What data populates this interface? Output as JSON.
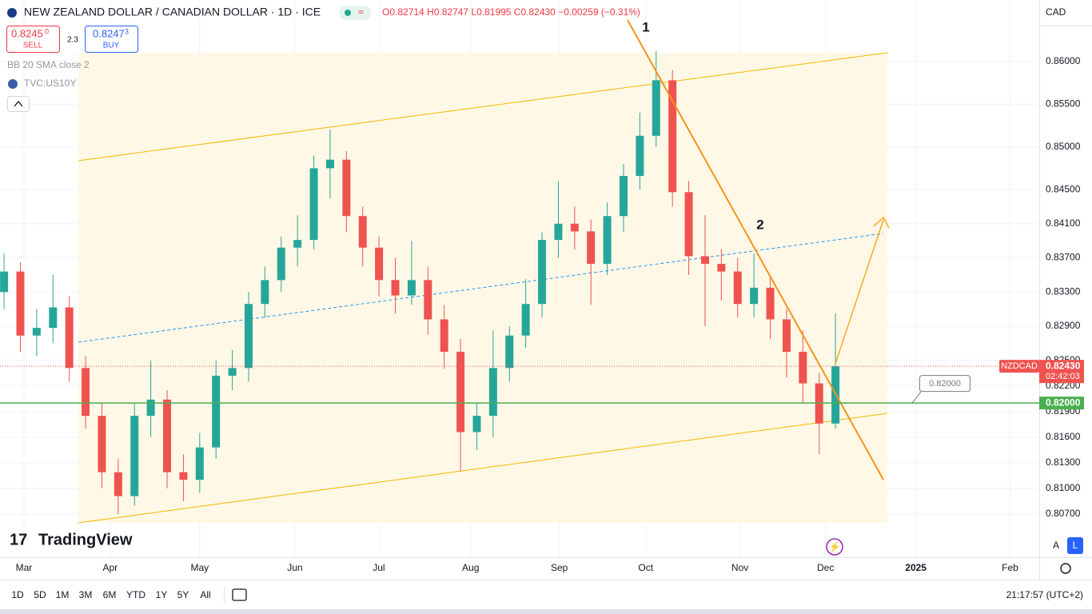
{
  "chart_data": {
    "type": "candlestick",
    "title": "NEW ZEALAND DOLLAR / CANADIAN DOLLAR · 1D · ICE",
    "ohlc_header": "O0.82714 H0.82747 L0.81995 C0.82430 −0.00259 (−0.31%)",
    "currency": "CAD",
    "sell": {
      "price": "0.8245",
      "price_tail": "0",
      "label": "SELL"
    },
    "spread": "2.3",
    "buy": {
      "price": "0.8247",
      "price_tail": "3",
      "label": "BUY"
    },
    "indicators": [
      "BB 20 SMA close 2",
      "TVC:US10Y"
    ],
    "annotations": [
      "1",
      "2"
    ],
    "up_color": "#26a69a",
    "down_color": "#ef5350",
    "grid": true,
    "xlim": [
      -0.25,
      63.5
    ],
    "xticks": [
      {
        "value": 1.22,
        "label": "Mar"
      },
      {
        "value": 6.51,
        "label": "Apr"
      },
      {
        "value": 12.0,
        "label": "May"
      },
      {
        "value": 17.84,
        "label": "Jun"
      },
      {
        "value": 22.99,
        "label": "Jul"
      },
      {
        "value": 28.62,
        "label": "Aug"
      },
      {
        "value": 34.06,
        "label": "Sep"
      },
      {
        "value": 39.36,
        "label": "Oct"
      },
      {
        "value": 45.14,
        "label": "Nov"
      },
      {
        "value": 50.39,
        "label": "Dec"
      },
      {
        "value": 55.93,
        "label": "2025"
      },
      {
        "value": 61.71,
        "label": "Feb"
      }
    ],
    "ylim": [
      0.80194,
      0.8672
    ],
    "yticks": [
      {
        "value": 0.86,
        "label": "0.86000"
      },
      {
        "value": 0.855,
        "label": "0.85500"
      },
      {
        "value": 0.85,
        "label": "0.85000"
      },
      {
        "value": 0.845,
        "label": "0.84500"
      },
      {
        "value": 0.841,
        "label": "0.84100"
      },
      {
        "value": 0.837,
        "label": "0.83700"
      },
      {
        "value": 0.833,
        "label": "0.83300"
      },
      {
        "value": 0.829,
        "label": "0.82900"
      },
      {
        "value": 0.825,
        "label": "0.82500"
      },
      {
        "value": 0.822,
        "label": "0.82200"
      },
      {
        "value": 0.819,
        "label": "0.81900"
      },
      {
        "value": 0.816,
        "label": "0.81600"
      },
      {
        "value": 0.813,
        "label": "0.81300"
      },
      {
        "value": 0.81,
        "label": "0.81000"
      },
      {
        "value": 0.807,
        "label": "0.80700"
      }
    ],
    "ohlc": [
      [
        0.833,
        0.8375,
        0.831,
        0.8354
      ],
      [
        0.8354,
        0.8365,
        0.826,
        0.8279
      ],
      [
        0.8279,
        0.831,
        0.8255,
        0.8288
      ],
      [
        0.8288,
        0.835,
        0.827,
        0.8312
      ],
      [
        0.8312,
        0.8325,
        0.8225,
        0.8241
      ],
      [
        0.8241,
        0.8255,
        0.817,
        0.8185
      ],
      [
        0.8185,
        0.82,
        0.81,
        0.8119
      ],
      [
        0.8119,
        0.8135,
        0.807,
        0.8091
      ],
      [
        0.8091,
        0.82,
        0.808,
        0.8185
      ],
      [
        0.8185,
        0.825,
        0.816,
        0.8204
      ],
      [
        0.8204,
        0.8215,
        0.81,
        0.8119
      ],
      [
        0.8119,
        0.814,
        0.8085,
        0.811
      ],
      [
        0.811,
        0.8165,
        0.8095,
        0.8148
      ],
      [
        0.8148,
        0.825,
        0.8135,
        0.8232
      ],
      [
        0.8232,
        0.8262,
        0.8215,
        0.8241
      ],
      [
        0.8241,
        0.833,
        0.8225,
        0.8316
      ],
      [
        0.8316,
        0.836,
        0.83,
        0.8344
      ],
      [
        0.8344,
        0.8395,
        0.833,
        0.8382
      ],
      [
        0.8382,
        0.842,
        0.836,
        0.8391
      ],
      [
        0.8391,
        0.849,
        0.838,
        0.8475
      ],
      [
        0.8475,
        0.852,
        0.844,
        0.8485
      ],
      [
        0.8485,
        0.8495,
        0.84,
        0.8419
      ],
      [
        0.8419,
        0.843,
        0.836,
        0.8382
      ],
      [
        0.8382,
        0.8395,
        0.8325,
        0.8344
      ],
      [
        0.8344,
        0.837,
        0.8305,
        0.8326
      ],
      [
        0.8326,
        0.839,
        0.8315,
        0.8344
      ],
      [
        0.8344,
        0.836,
        0.828,
        0.8298
      ],
      [
        0.8298,
        0.8315,
        0.824,
        0.826
      ],
      [
        0.826,
        0.8275,
        0.812,
        0.8166
      ],
      [
        0.8166,
        0.82,
        0.8145,
        0.8185
      ],
      [
        0.8185,
        0.8285,
        0.816,
        0.8241
      ],
      [
        0.8241,
        0.829,
        0.8225,
        0.8279
      ],
      [
        0.8279,
        0.8345,
        0.8265,
        0.8316
      ],
      [
        0.8316,
        0.84,
        0.83,
        0.8391
      ],
      [
        0.8391,
        0.846,
        0.837,
        0.841
      ],
      [
        0.841,
        0.843,
        0.838,
        0.8401
      ],
      [
        0.8401,
        0.8415,
        0.8315,
        0.8363
      ],
      [
        0.8363,
        0.8435,
        0.835,
        0.8419
      ],
      [
        0.8419,
        0.848,
        0.84,
        0.8466
      ],
      [
        0.8466,
        0.854,
        0.845,
        0.8513
      ],
      [
        0.8513,
        0.8612,
        0.85,
        0.8578
      ],
      [
        0.8578,
        0.859,
        0.843,
        0.8447
      ],
      [
        0.8447,
        0.846,
        0.835,
        0.8372
      ],
      [
        0.8372,
        0.842,
        0.829,
        0.8363
      ],
      [
        0.8363,
        0.838,
        0.832,
        0.8354
      ],
      [
        0.8354,
        0.837,
        0.83,
        0.8316
      ],
      [
        0.8316,
        0.8375,
        0.83,
        0.8335
      ],
      [
        0.8335,
        0.835,
        0.8275,
        0.8298
      ],
      [
        0.8298,
        0.831,
        0.823,
        0.826
      ],
      [
        0.826,
        0.8285,
        0.82,
        0.8223
      ],
      [
        0.8223,
        0.8235,
        0.814,
        0.8176
      ],
      [
        0.8176,
        0.8305,
        0.817,
        0.8243
      ]
    ],
    "last_price": {
      "value": 0.8243,
      "label": "0.82430",
      "symbol": "NZDCAD",
      "countdown": "02:42:03"
    },
    "level": {
      "value": 0.82,
      "label": "0.82000",
      "color": "#4caf50"
    },
    "brand": "TradingView",
    "timeframes": [
      "1D",
      "5D",
      "1M",
      "3M",
      "6M",
      "YTD",
      "1Y",
      "5Y",
      "All"
    ],
    "scale_modes": [
      "A",
      "L"
    ],
    "clock": "21:17:57 (UTC+2)"
  }
}
